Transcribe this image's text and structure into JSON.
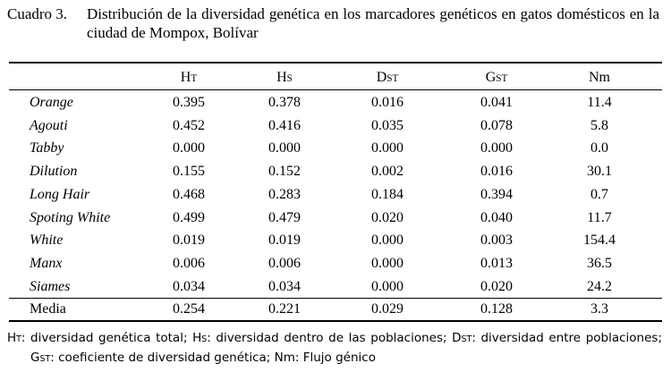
{
  "caption": {
    "label": "Cuadro 3.",
    "text": "Distribución de la diversidad genética en los marcadores genéticos en gatos domésticos en la ciudad de Mompox, Bolívar"
  },
  "table": {
    "header": [
      {
        "main": "H",
        "sub": "T"
      },
      {
        "main": "H",
        "sub": "S"
      },
      {
        "main": "D",
        "sub": "ST"
      },
      {
        "main": "G",
        "sub": "ST"
      },
      {
        "main": "Nm"
      }
    ],
    "rows": [
      [
        "Orange",
        "0.395",
        "0.378",
        "0.016",
        "0.041",
        "11.4"
      ],
      [
        "Agouti",
        "0.452",
        "0.416",
        "0.035",
        "0.078",
        "5.8"
      ],
      [
        "Tabby",
        "0.000",
        "0.000",
        "0.000",
        "0.000",
        "0.0"
      ],
      [
        "Dilution",
        "0.155",
        "0.152",
        "0.002",
        "0.016",
        "30.1"
      ],
      [
        "Long Hair",
        "0.468",
        "0.283",
        "0.184",
        "0.394",
        "0.7"
      ],
      [
        "Spoting White",
        "0.499",
        "0.479",
        "0.020",
        "0.040",
        "11.7"
      ],
      [
        "White",
        "0.019",
        "0.019",
        "0.000",
        "0.003",
        "154.4"
      ],
      [
        "Manx",
        "0.006",
        "0.006",
        "0.000",
        "0.013",
        "36.5"
      ],
      [
        "Siames",
        "0.034",
        "0.034",
        "0.000",
        "0.020",
        "24.2"
      ]
    ],
    "summary": [
      "Media",
      "0.254",
      "0.221",
      "0.029",
      "0.128",
      "3.3"
    ]
  },
  "footnote": [
    {
      "main": "H",
      "sub": "T",
      "text": ": diversidad genética total; "
    },
    {
      "main": "H",
      "sub": "S",
      "text": ": diversidad dentro de las poblaciones; "
    },
    {
      "main": "D",
      "sub": "ST",
      "text": ": diversidad entre poblaciones; "
    },
    {
      "main": "G",
      "sub": "ST",
      "text": ": coeficiente de diversidad genética; "
    },
    {
      "main": "Nm",
      "text": ": Flujo génico"
    }
  ]
}
